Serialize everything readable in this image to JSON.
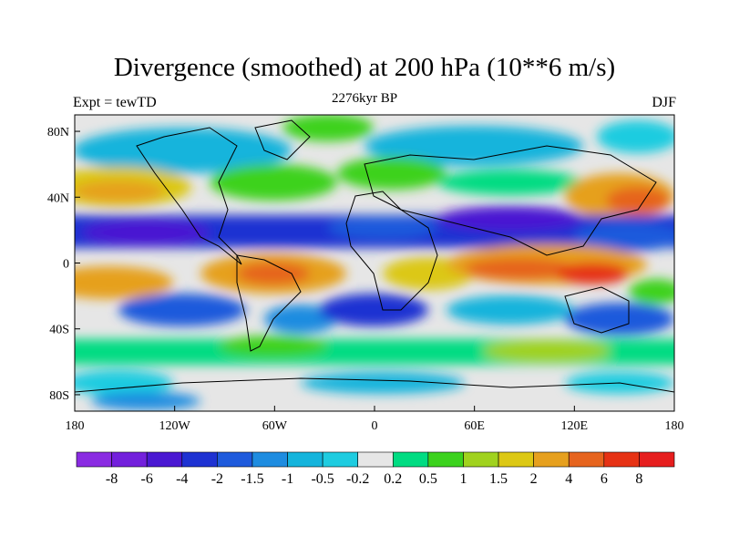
{
  "chart_data": {
    "type": "heatmap",
    "title": "Divergence (smoothed) at 200 hPa (10**6 m/s)",
    "subtitle_left": "Expt = tewTD",
    "subtitle_center": "2276kyr BP",
    "subtitle_right": "DJF",
    "projection": "cylindrical equidistant, land outlines",
    "xlim": [
      -180,
      180
    ],
    "ylim": [
      -90,
      90
    ],
    "x_ticks": [
      {
        "value": -180,
        "label": "180"
      },
      {
        "value": -120,
        "label": "120W"
      },
      {
        "value": -60,
        "label": "60W"
      },
      {
        "value": 0,
        "label": "0"
      },
      {
        "value": 60,
        "label": "60E"
      },
      {
        "value": 120,
        "label": "120E"
      },
      {
        "value": 180,
        "label": "180"
      }
    ],
    "y_ticks": [
      {
        "value": 80,
        "label": "80N"
      },
      {
        "value": 40,
        "label": "40N"
      },
      {
        "value": 0,
        "label": "0"
      },
      {
        "value": -40,
        "label": "40S"
      },
      {
        "value": -80,
        "label": "80S"
      }
    ],
    "colorbar": {
      "levels": [
        "-8",
        "-6",
        "-4",
        "-2",
        "-1.5",
        "-1",
        "-0.5",
        "-0.2",
        "0.2",
        "0.5",
        "1",
        "1.5",
        "2",
        "4",
        "6",
        "8"
      ],
      "colors": [
        "#8a2be2",
        "#7320dc",
        "#4a18d2",
        "#1e32d2",
        "#1e5adc",
        "#1e8ce0",
        "#14b4dc",
        "#1ecce0",
        "#e6e6e6",
        "#00dc82",
        "#3cd21e",
        "#a0d21e",
        "#dcc814",
        "#e6a01e",
        "#e6641e",
        "#e63214",
        "#e61e1e"
      ]
    },
    "field_bands": [
      {
        "lat_from": 90,
        "lat_to": 60,
        "value": 0,
        "description": "mostly near-zero north polar, patches of -1 to 1"
      },
      {
        "lat_from": 60,
        "lat_to": 30,
        "value": 1,
        "description": "positive band mid-latitude north (1 to 4)"
      },
      {
        "lat_from": 30,
        "lat_to": 5,
        "value": -2,
        "description": "strong convergence band subtropics north (-2 to -6)"
      },
      {
        "lat_from": 5,
        "lat_to": -25,
        "value": 4,
        "description": "strong divergence tropics (2 to 6)"
      },
      {
        "lat_from": -25,
        "lat_to": -50,
        "value": -1.5,
        "description": "convergence southern subtropics"
      },
      {
        "lat_from": -50,
        "lat_to": -65,
        "value": 1,
        "description": "positive southern mid-latitude"
      },
      {
        "lat_from": -65,
        "lat_to": -90,
        "value": 0,
        "description": "near-zero antarctic"
      }
    ]
  }
}
